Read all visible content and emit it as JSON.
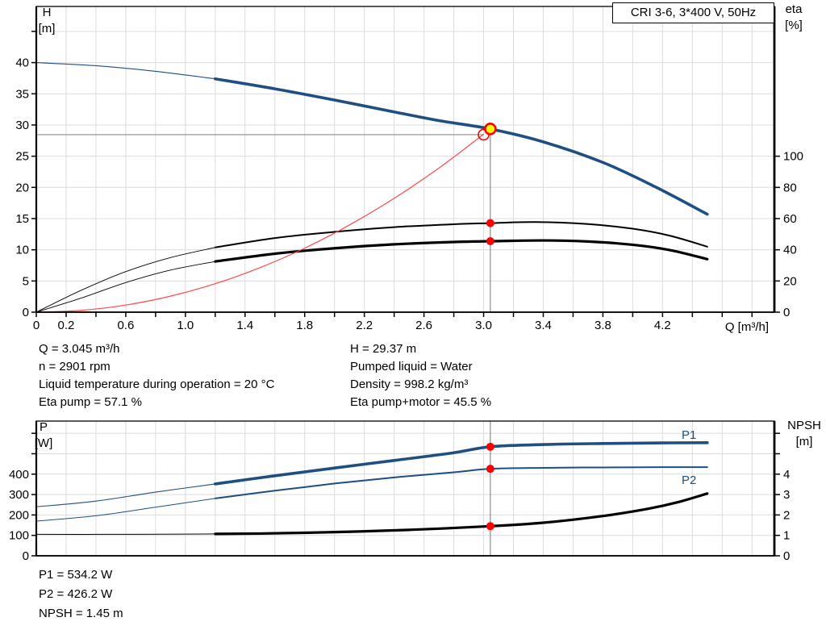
{
  "title_box": {
    "label": "CRI 3-6, 3*400 V, 50Hz"
  },
  "colors": {
    "curve_blue": "#1e4e82",
    "curve_black": "#000000",
    "curve_red": "#ff4a4a",
    "dot_red": "#ff0000",
    "duty_yellow": "#ffff00",
    "grid": "#dcdcdc",
    "ref_line": "#8c8c8c",
    "axis": "#000000",
    "label_blue": "#1e4e82"
  },
  "axis_labels": {
    "top_left_title": "H",
    "top_left_unit": "[m]",
    "top_right_title": "eta",
    "top_right_unit": "[%]",
    "top_x": "Q [m³/h]",
    "bottom_left_title": "P",
    "bottom_left_unit": "[W]",
    "bottom_right_title": "NPSH",
    "bottom_right_unit": "[m]"
  },
  "curve_labels": {
    "p1": "P1",
    "p2": "P2"
  },
  "annotations_mid": {
    "left": [
      "Q = 3.045 m³/h",
      "n = 2901 rpm",
      "Liquid temperature during operation = 20 °C",
      "Eta pump = 57.1 %"
    ],
    "right": [
      "H = 29.37 m",
      "Pumped liquid = Water",
      "Density = 998.2 kg/m³",
      "Eta pump+motor = 45.5 %"
    ]
  },
  "annotations_bottom": [
    "P1 = 534.2 W",
    "P2 = 426.2 W",
    "NPSH = 1.45 m"
  ],
  "chart_data": [
    {
      "type": "line",
      "title": "CRI 3-6, 3*400 V, 50Hz",
      "xlabel": "Q [m³/h]",
      "ylabel_left": "H [m]",
      "ylabel_right": "eta [%]",
      "xlim": [
        0,
        4.95
      ],
      "ylim_left": [
        0,
        49
      ],
      "ylim_right": [
        0,
        196
      ],
      "grid": true,
      "x_grid_step": 0.2,
      "x_tick_step": 0.2,
      "x_tick_labels": [
        "0",
        "0.2",
        "0.6",
        "1.0",
        "1.4",
        "1.8",
        "2.2",
        "2.6",
        "3.0",
        "3.4",
        "3.8",
        "4.2"
      ],
      "x_tick_label_values": [
        0,
        0.2,
        0.6,
        1.0,
        1.4,
        1.8,
        2.2,
        2.6,
        3.0,
        3.4,
        3.8,
        4.2
      ],
      "y_left_ticks": [
        0,
        5,
        10,
        15,
        20,
        25,
        30,
        35,
        40
      ],
      "y_left_minor_ticks": [
        45
      ],
      "y_right_ticks": [
        0,
        20,
        40,
        60,
        80,
        100
      ],
      "y_right_minor_ticks": [],
      "series": [
        {
          "name": "eta-pump-curve",
          "axis": "right",
          "color": "#000000",
          "thin": 0.9,
          "thick": 2,
          "thick_from": 1.2,
          "points": [
            [
              0,
              0
            ],
            [
              0.3,
              14
            ],
            [
              0.6,
              26
            ],
            [
              0.9,
              35
            ],
            [
              1.2,
              41.5
            ],
            [
              1.6,
              47.5
            ],
            [
              2.0,
              51.5
            ],
            [
              2.4,
              54.5
            ],
            [
              2.8,
              56.4
            ],
            [
              3.045,
              57.1
            ],
            [
              3.35,
              57.8
            ],
            [
              3.7,
              56.5
            ],
            [
              4.0,
              53.5
            ],
            [
              4.25,
              49.0
            ],
            [
              4.5,
              42.0
            ]
          ]
        },
        {
          "name": "eta-pump-motor-curve",
          "axis": "right",
          "color": "#000000",
          "thin": 0.9,
          "thick": 3.2,
          "thick_from": 1.2,
          "points": [
            [
              0,
              0
            ],
            [
              0.3,
              9
            ],
            [
              0.6,
              19
            ],
            [
              0.9,
              27
            ],
            [
              1.2,
              32.5
            ],
            [
              1.6,
              37.5
            ],
            [
              2.0,
              41.0
            ],
            [
              2.4,
              43.5
            ],
            [
              2.8,
              45.0
            ],
            [
              3.045,
              45.5
            ],
            [
              3.4,
              46.0
            ],
            [
              3.7,
              45.3
            ],
            [
              4.0,
              43.2
            ],
            [
              4.25,
              39.8
            ],
            [
              4.5,
              34.0
            ]
          ]
        },
        {
          "name": "system-curve",
          "axis": "left",
          "color": "#ff4a4a",
          "thin": 1.2,
          "thick": 1.2,
          "points": [
            [
              0,
              0
            ],
            [
              0.3,
              0.29
            ],
            [
              0.6,
              1.14
            ],
            [
              0.9,
              2.57
            ],
            [
              1.2,
              4.56
            ],
            [
              1.5,
              7.13
            ],
            [
              1.8,
              10.26
            ],
            [
              2.1,
              13.97
            ],
            [
              2.4,
              18.25
            ],
            [
              2.7,
              23.09
            ],
            [
              3.0,
              28.51
            ]
          ]
        },
        {
          "name": "h-curve",
          "axis": "left",
          "color": "#1e4e82",
          "thin": 1.1,
          "thick": 3.6,
          "thick_from": 1.2,
          "points": [
            [
              0,
              40.0
            ],
            [
              0.4,
              39.5
            ],
            [
              0.8,
              38.6
            ],
            [
              1.2,
              37.4
            ],
            [
              1.6,
              35.8
            ],
            [
              2.0,
              34.0
            ],
            [
              2.4,
              32.1
            ],
            [
              2.7,
              30.7
            ],
            [
              3.045,
              29.37
            ],
            [
              3.4,
              27.3
            ],
            [
              3.8,
              24.0
            ],
            [
              4.15,
              20.1
            ],
            [
              4.5,
              15.7
            ]
          ]
        }
      ],
      "duty_point": {
        "Q": 3.045,
        "H": 29.37
      },
      "system_intersection": {
        "Q": 3.0,
        "H": 28.45
      },
      "eta_markers": [
        {
          "Q": 3.045,
          "eta": 57.1
        },
        {
          "Q": 3.045,
          "eta": 45.5
        }
      ]
    },
    {
      "type": "line",
      "xlabel": "Q [m³/h]",
      "ylabel_left": "P [W]",
      "ylabel_right": "NPSH [m]",
      "xlim": [
        0,
        4.95
      ],
      "ylim_left": [
        0,
        660
      ],
      "ylim_right": [
        0,
        6.6
      ],
      "grid": true,
      "x_grid_step": 0.2,
      "y_left_ticks": [
        0,
        100,
        200,
        300,
        400
      ],
      "y_left_minor_ticks": [
        500,
        600
      ],
      "y_right_ticks": [
        0,
        1,
        2,
        3,
        4
      ],
      "y_right_minor_ticks": [
        5,
        6
      ],
      "series": [
        {
          "name": "p1-curve",
          "axis": "left",
          "color": "#1e4e82",
          "thin": 1.1,
          "thick": 3.6,
          "thick_from": 1.2,
          "points": [
            [
              0,
              240
            ],
            [
              0.4,
              268
            ],
            [
              0.8,
              312
            ],
            [
              1.2,
              352
            ],
            [
              1.6,
              392
            ],
            [
              2.0,
              430
            ],
            [
              2.4,
              467
            ],
            [
              2.8,
              505
            ],
            [
              3.045,
              534.2
            ],
            [
              3.4,
              545
            ],
            [
              3.8,
              550
            ],
            [
              4.2,
              553
            ],
            [
              4.5,
              554
            ]
          ]
        },
        {
          "name": "p2-curve",
          "axis": "left",
          "color": "#1e4e82",
          "thin": 1.0,
          "thick": 2,
          "thick_from": 1.2,
          "points": [
            [
              0,
              170
            ],
            [
              0.4,
              196
            ],
            [
              0.8,
              238
            ],
            [
              1.2,
              281
            ],
            [
              1.6,
              319
            ],
            [
              2.0,
              354
            ],
            [
              2.4,
              384
            ],
            [
              2.8,
              409
            ],
            [
              3.045,
              426.2
            ],
            [
              3.4,
              431
            ],
            [
              3.8,
              433
            ],
            [
              4.2,
              434
            ],
            [
              4.5,
              434
            ]
          ]
        },
        {
          "name": "npsh-curve",
          "axis": "right",
          "color": "#000000",
          "thin": 1.0,
          "thick": 3.2,
          "thick_from": 1.2,
          "points": [
            [
              0,
              1.05
            ],
            [
              0.5,
              1.05
            ],
            [
              1.0,
              1.06
            ],
            [
              1.5,
              1.09
            ],
            [
              2.0,
              1.16
            ],
            [
              2.5,
              1.27
            ],
            [
              3.045,
              1.45
            ],
            [
              3.4,
              1.62
            ],
            [
              3.8,
              1.95
            ],
            [
              4.1,
              2.3
            ],
            [
              4.3,
              2.62
            ],
            [
              4.5,
              3.05
            ]
          ]
        }
      ],
      "duty_markers": [
        {
          "Q": 3.045,
          "value": 534.2,
          "axis": "left"
        },
        {
          "Q": 3.045,
          "value": 426.2,
          "axis": "left"
        },
        {
          "Q": 3.045,
          "value": 1.45,
          "axis": "right"
        }
      ]
    }
  ]
}
